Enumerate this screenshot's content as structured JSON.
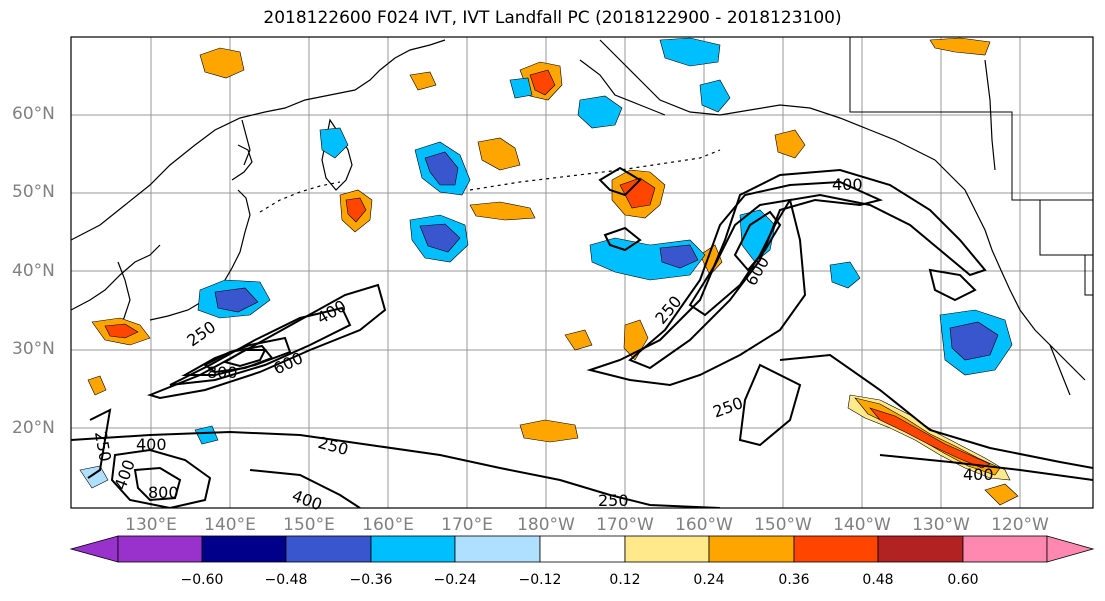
{
  "title": "2018122600 F024 IVT, IVT Landfall PC (2018122900 - 2018123100)",
  "lat_labels": [
    "60°N",
    "50°N",
    "40°N",
    "30°N",
    "20°N"
  ],
  "lon_labels": [
    "130°E",
    "140°E",
    "150°E",
    "160°E",
    "170°E",
    "180°W",
    "170°W",
    "160°W",
    "150°W",
    "140°W",
    "130°W",
    "120°W"
  ],
  "contour_labels": [
    "400",
    "250",
    "600",
    "400",
    "250",
    "600",
    "800",
    "250",
    "250",
    "400",
    "250",
    "400",
    "250",
    "400",
    "800",
    "250",
    "400"
  ],
  "colorbar": {
    "colors": [
      "#9932cc",
      "#00008b",
      "#3a56cf",
      "#00bfff",
      "#b0e0ff",
      "#ffffff",
      "#ffe98a",
      "#ffa500",
      "#ff4500",
      "#b22222",
      "#ff88b0"
    ],
    "tick_labels": [
      "−0.60",
      "−0.48",
      "−0.36",
      "−0.24",
      "−0.12",
      "0.12",
      "0.24",
      "0.36",
      "0.48",
      "0.60"
    ]
  }
}
